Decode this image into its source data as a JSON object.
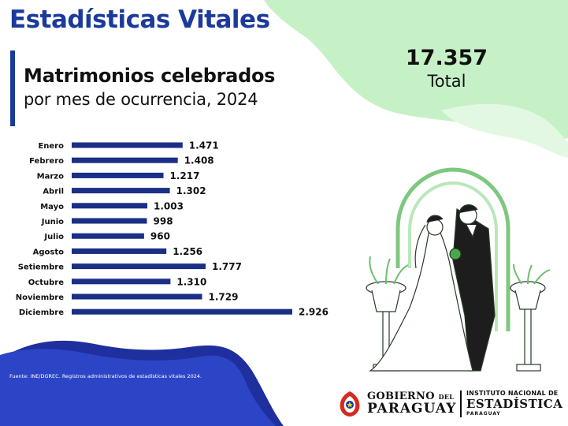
{
  "header": {
    "title": "Estadísticas Vitales"
  },
  "total": {
    "value": "17.357",
    "label": "Total"
  },
  "source": "Fuente: INE/DGREC. Registros administrativos de estadísticas vitales 2024.",
  "logos": {
    "gobierno_line1": "GOBIERNO",
    "gobierno_del": "DEL",
    "gobierno_line2": "PARAGUAY",
    "ine_line1": "INSTITUTO NACIONAL DE",
    "ine_line2": "ESTADÍSTICA",
    "ine_line3": "PARAGUAY"
  },
  "colors": {
    "bar": "#1b2f86",
    "title": "#1b3a9c",
    "green_blob": "#c2f0c2",
    "green_blob_light": "#dcf7dc",
    "blue_wave": "#2c45c7",
    "blue_wave_dark": "#1f2f9e"
  },
  "chart_data": {
    "type": "bar",
    "orientation": "horizontal",
    "title": "Matrimonios celebrados",
    "subtitle": "por mes de ocurrencia, 2024",
    "categories": [
      "Enero",
      "Febrero",
      "Marzo",
      "Abril",
      "Mayo",
      "Junio",
      "Julio",
      "Agosto",
      "Setiembre",
      "Octubre",
      "Noviembre",
      "Diciembre"
    ],
    "values": [
      1471,
      1408,
      1217,
      1302,
      1003,
      998,
      960,
      1256,
      1777,
      1310,
      1729,
      2926
    ],
    "value_labels": [
      "1.471",
      "1.408",
      "1.217",
      "1.302",
      "1.003",
      "998",
      "960",
      "1.256",
      "1.777",
      "1.310",
      "1.729",
      "2.926"
    ],
    "xlim": [
      0,
      2926
    ],
    "grid": false,
    "legend": "none"
  }
}
